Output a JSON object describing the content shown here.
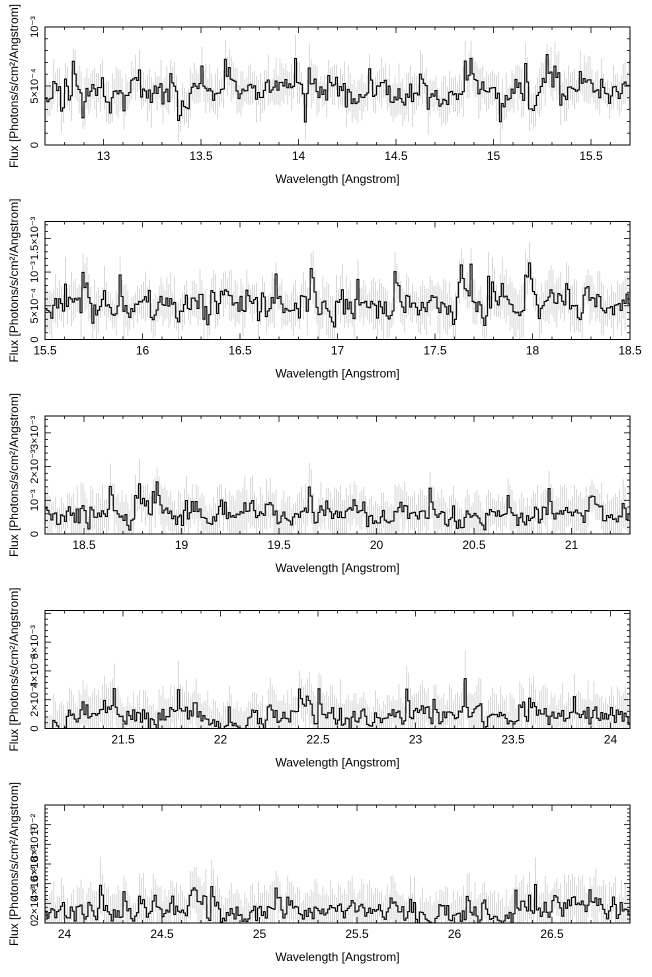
{
  "chart_data": [
    {
      "type": "line",
      "xlabel": "Wavelength [Angstrom]",
      "ylabel": "Flux [Photons/s/cm²/Angstrom]",
      "xlim": [
        12.7,
        15.7
      ],
      "ylim": [
        0,
        0.001
      ],
      "x_ticks": [
        {
          "v": 13,
          "label": "13"
        },
        {
          "v": 13.5,
          "label": "13.5"
        },
        {
          "v": 14,
          "label": "14"
        },
        {
          "v": 14.5,
          "label": "14.5"
        },
        {
          "v": 15,
          "label": "15"
        },
        {
          "v": 15.5,
          "label": "15.5"
        }
      ],
      "y_ticks": [
        {
          "v": 0,
          "label": "0"
        },
        {
          "v": 0.0005,
          "label": "5×10⁻⁴"
        },
        {
          "v": 0.001,
          "label": "10⁻³"
        }
      ],
      "series": [
        {
          "bin_width": 0.01,
          "seed": 11,
          "mean": 0.00046,
          "noise": 0.00012,
          "err": 0.00016
        }
      ]
    },
    {
      "type": "line",
      "xlabel": "Wavelength [Angstrom]",
      "ylabel": "Flux [Photons/s/cm²/Angstrom]",
      "xlim": [
        15.5,
        18.5
      ],
      "ylim": [
        0,
        0.00175
      ],
      "x_ticks": [
        {
          "v": 15.5,
          "label": "15.5"
        },
        {
          "v": 16,
          "label": "16"
        },
        {
          "v": 16.5,
          "label": "16.5"
        },
        {
          "v": 17,
          "label": "17"
        },
        {
          "v": 17.5,
          "label": "17.5"
        },
        {
          "v": 18,
          "label": "18"
        },
        {
          "v": 18.5,
          "label": "18.5"
        }
      ],
      "y_ticks": [
        {
          "v": 0,
          "label": "0"
        },
        {
          "v": 0.0005,
          "label": "5×10⁻⁴"
        },
        {
          "v": 0.001,
          "label": "10⁻³"
        },
        {
          "v": 0.0015,
          "label": "1.5×10⁻³"
        }
      ],
      "series": [
        {
          "bin_width": 0.01,
          "seed": 23,
          "mean": 0.00052,
          "noise": 0.00022,
          "err": 0.0003
        }
      ]
    },
    {
      "type": "line",
      "xlabel": "Wavelength [Angstrom]",
      "ylabel": "Flux [Photons/s/cm²/Angstrom]",
      "xlim": [
        18.3,
        21.3
      ],
      "ylim": [
        0,
        0.0035
      ],
      "x_ticks": [
        {
          "v": 18.5,
          "label": "18.5"
        },
        {
          "v": 19,
          "label": "19"
        },
        {
          "v": 19.5,
          "label": "19.5"
        },
        {
          "v": 20,
          "label": "20"
        },
        {
          "v": 20.5,
          "label": "20.5"
        },
        {
          "v": 21,
          "label": "21"
        }
      ],
      "y_ticks": [
        {
          "v": 0,
          "label": "0"
        },
        {
          "v": 0.001,
          "label": "10⁻³"
        },
        {
          "v": 0.002,
          "label": "2×10⁻³"
        },
        {
          "v": 0.003,
          "label": "3×10⁻³"
        }
      ],
      "series": [
        {
          "bin_width": 0.01,
          "seed": 37,
          "mean": 0.0006,
          "noise": 0.00035,
          "err": 0.0006
        }
      ]
    },
    {
      "type": "line",
      "xlabel": "Wavelength [Angstrom]",
      "ylabel": "Flux [Photons/s/cm²/Angstrom]",
      "xlim": [
        21.1,
        24.1
      ],
      "ylim": [
        0,
        0.0082
      ],
      "x_ticks": [
        {
          "v": 21.5,
          "label": "21.5"
        },
        {
          "v": 22,
          "label": "22"
        },
        {
          "v": 22.5,
          "label": "22.5"
        },
        {
          "v": 23,
          "label": "23"
        },
        {
          "v": 23.5,
          "label": "23.5"
        },
        {
          "v": 24,
          "label": "24"
        }
      ],
      "y_ticks": [
        {
          "v": 0,
          "label": "0"
        },
        {
          "v": 0.002,
          "label": "2×10⁻³"
        },
        {
          "v": 0.004,
          "label": "4×10⁻³"
        },
        {
          "v": 0.006,
          "label": "6×10⁻³"
        }
      ],
      "series": [
        {
          "bin_width": 0.01,
          "seed": 53,
          "mean": 0.0008,
          "noise": 0.0009,
          "err": 0.0015
        }
      ]
    },
    {
      "type": "line",
      "xlabel": "Wavelength [Angstrom]",
      "ylabel": "Flux [Photons/s/cm²/Angstrom]",
      "xlim": [
        23.9,
        26.9
      ],
      "ylim": [
        0,
        0.012
      ],
      "x_ticks": [
        {
          "v": 24,
          "label": "24"
        },
        {
          "v": 24.5,
          "label": "24.5"
        },
        {
          "v": 25,
          "label": "25"
        },
        {
          "v": 25.5,
          "label": "25.5"
        },
        {
          "v": 26,
          "label": "26"
        },
        {
          "v": 26.5,
          "label": "26.5"
        }
      ],
      "y_ticks": [
        {
          "v": 0,
          "label": "0"
        },
        {
          "v": 0.002,
          "label": "2×10⁻³"
        },
        {
          "v": 0.004,
          "label": "4×10⁻³"
        },
        {
          "v": 0.006,
          "label": "6×10⁻³"
        },
        {
          "v": 0.008,
          "label": "8×10⁻³"
        },
        {
          "v": 0.01,
          "label": "10⁻²"
        }
      ],
      "series": [
        {
          "bin_width": 0.01,
          "seed": 71,
          "mean": 0.0012,
          "noise": 0.0013,
          "err": 0.0022
        }
      ]
    }
  ]
}
